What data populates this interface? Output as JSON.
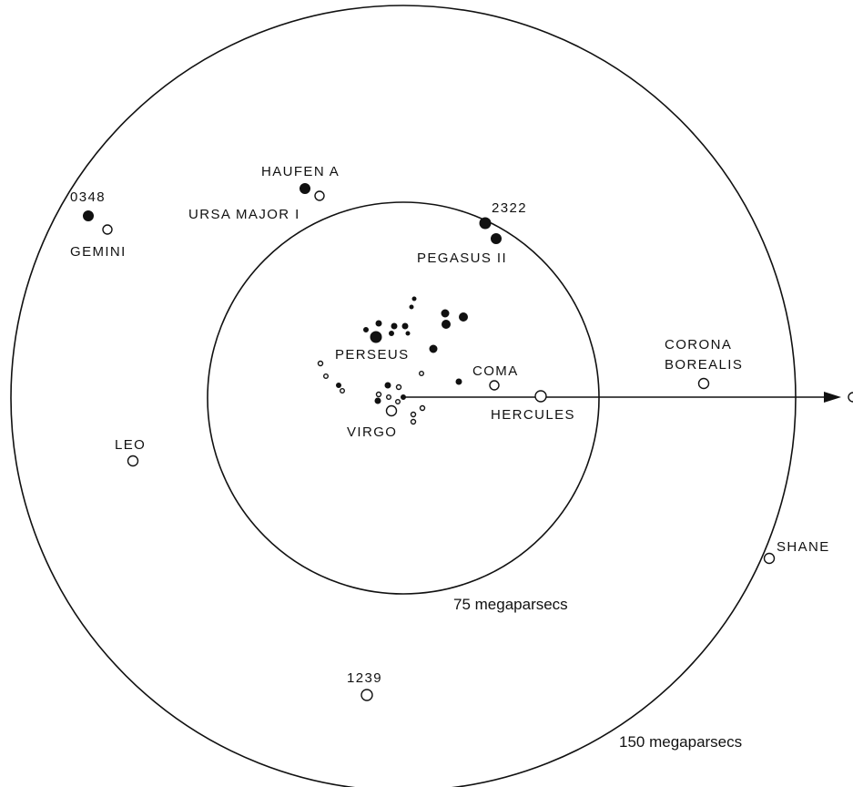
{
  "rings": {
    "inner_label": "75 megaparsecs",
    "outer_label": "150 megaparsecs"
  },
  "clusters": {
    "c0348": "0348",
    "gemini": "GEMINI",
    "haufen_a": "HAUFEN A",
    "ursa_major_i": "URSA MAJOR I",
    "c2322": "2322",
    "pegasus_ii": "PEGASUS II",
    "perseus": "PERSEUS",
    "coma": "COMA",
    "virgo": "VIRGO",
    "hercules": "HERCULES",
    "corona_borealis_line1": "CORONA",
    "corona_borealis_line2": "BOREALIS",
    "leo": "LEO",
    "shane": "SHANE",
    "c1239": "1239"
  },
  "colors": {
    "ink": "#111111",
    "background": "#ffffff"
  }
}
